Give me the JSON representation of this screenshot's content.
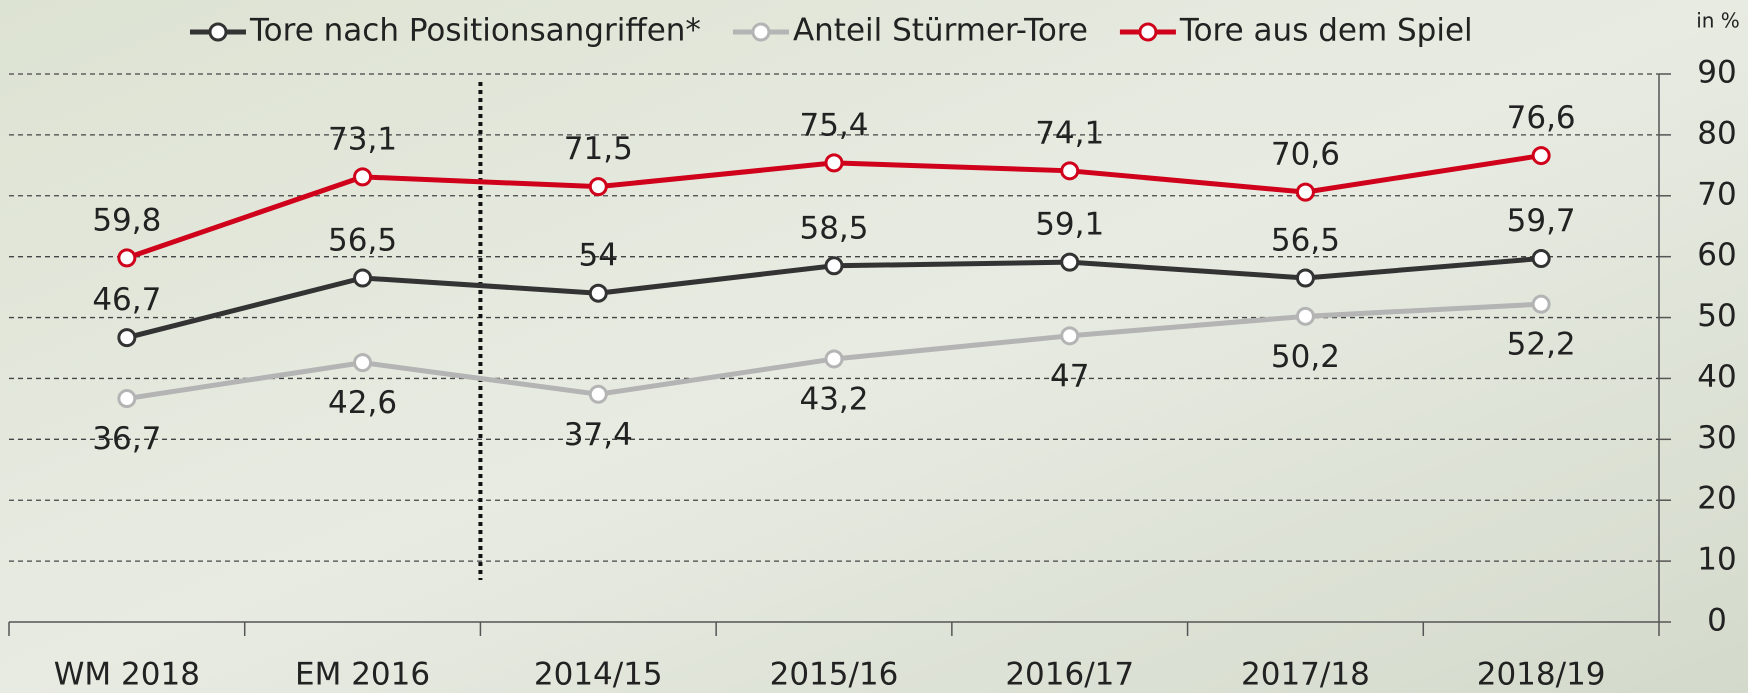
{
  "chart_data": {
    "type": "line",
    "unit": "in %",
    "categories": [
      "WM 2018",
      "EM 2016",
      "2014/15",
      "2015/16",
      "2016/17",
      "2017/18",
      "2018/19"
    ],
    "series": [
      {
        "name": "Tore nach Positionsangriffen*",
        "color": "#333333",
        "values": [
          46.7,
          56.5,
          54,
          58.5,
          59.1,
          56.5,
          59.7
        ],
        "value_labels": [
          "46,7",
          "56,5",
          "54",
          "58,5",
          "59,1",
          "56,5",
          "59,7"
        ]
      },
      {
        "name": "Anteil Stürmer-Tore",
        "color": "#b4b4b4",
        "values": [
          36.7,
          42.6,
          37.4,
          43.2,
          47,
          50.2,
          52.2
        ],
        "value_labels": [
          "36,7",
          "42,6",
          "37,4",
          "43,2",
          "47",
          "50,2",
          "52,2"
        ]
      },
      {
        "name": "Tore aus dem Spiel",
        "color": "#d0021b",
        "values": [
          59.8,
          73.1,
          71.5,
          75.4,
          74.1,
          70.6,
          76.6
        ],
        "value_labels": [
          "59,8",
          "73,1",
          "71,5",
          "75,4",
          "74,1",
          "70,6",
          "76,6"
        ]
      }
    ],
    "ylim": [
      0,
      90
    ],
    "yticks": [
      0,
      10,
      20,
      30,
      40,
      50,
      60,
      70,
      80,
      90
    ],
    "grid": true
  }
}
